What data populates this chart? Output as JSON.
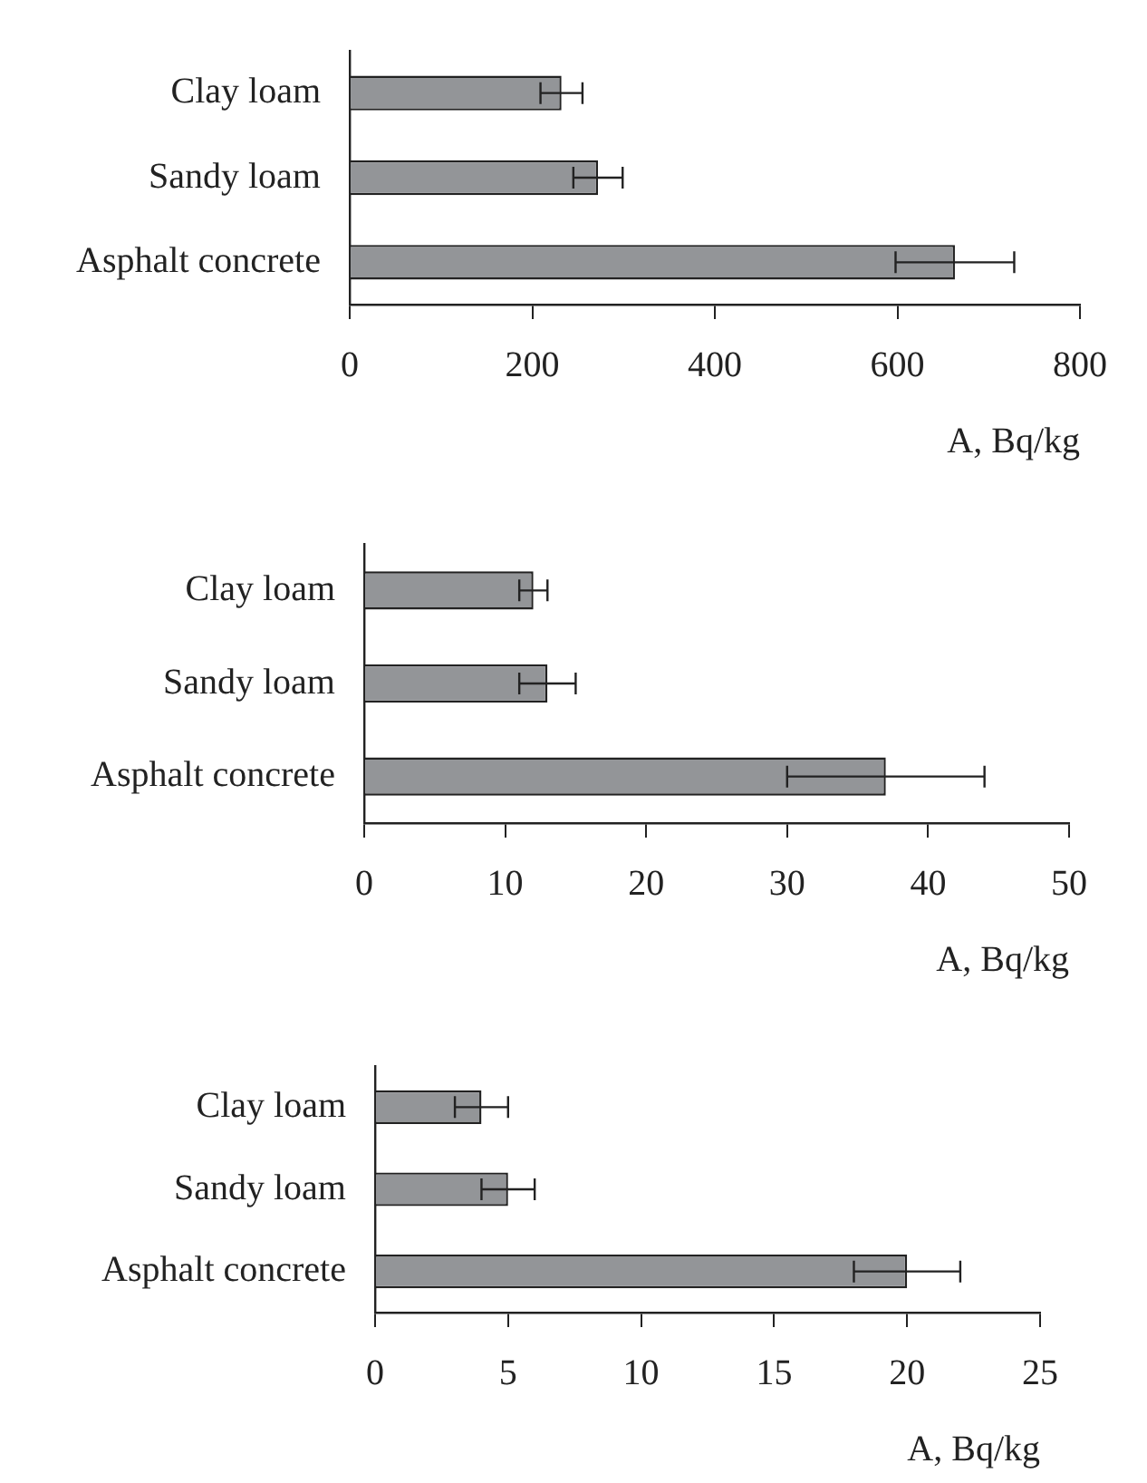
{
  "chart_data": [
    {
      "type": "bar",
      "orientation": "horizontal",
      "categories": [
        "Clay loam",
        "Sandy loam",
        "Asphalt concrete"
      ],
      "values": [
        232,
        272,
        663
      ],
      "errors": [
        23,
        27,
        65
      ],
      "color": "#939598",
      "xlim": [
        0,
        800
      ],
      "xticks": [
        0,
        200,
        400,
        600,
        800
      ],
      "xlabel": "A, Bq/kg",
      "grid": false
    },
    {
      "type": "bar",
      "orientation": "horizontal",
      "categories": [
        "Clay loam",
        "Sandy loam",
        "Asphalt concrete"
      ],
      "values": [
        12,
        13,
        37
      ],
      "errors": [
        1,
        2,
        7
      ],
      "color": "#939598",
      "xlim": [
        0,
        50
      ],
      "xticks": [
        0,
        10,
        20,
        30,
        40,
        50
      ],
      "xlabel": "A, Bq/kg",
      "grid": false
    },
    {
      "type": "bar",
      "orientation": "horizontal",
      "categories": [
        "Clay loam",
        "Sandy loam",
        "Asphalt concrete"
      ],
      "values": [
        4,
        5,
        20
      ],
      "errors": [
        1,
        1,
        2
      ],
      "color": "#939598",
      "xlim": [
        0,
        25
      ],
      "xticks": [
        0,
        5,
        10,
        15,
        20,
        25
      ],
      "xlabel": "A, Bq/kg",
      "grid": false
    }
  ]
}
